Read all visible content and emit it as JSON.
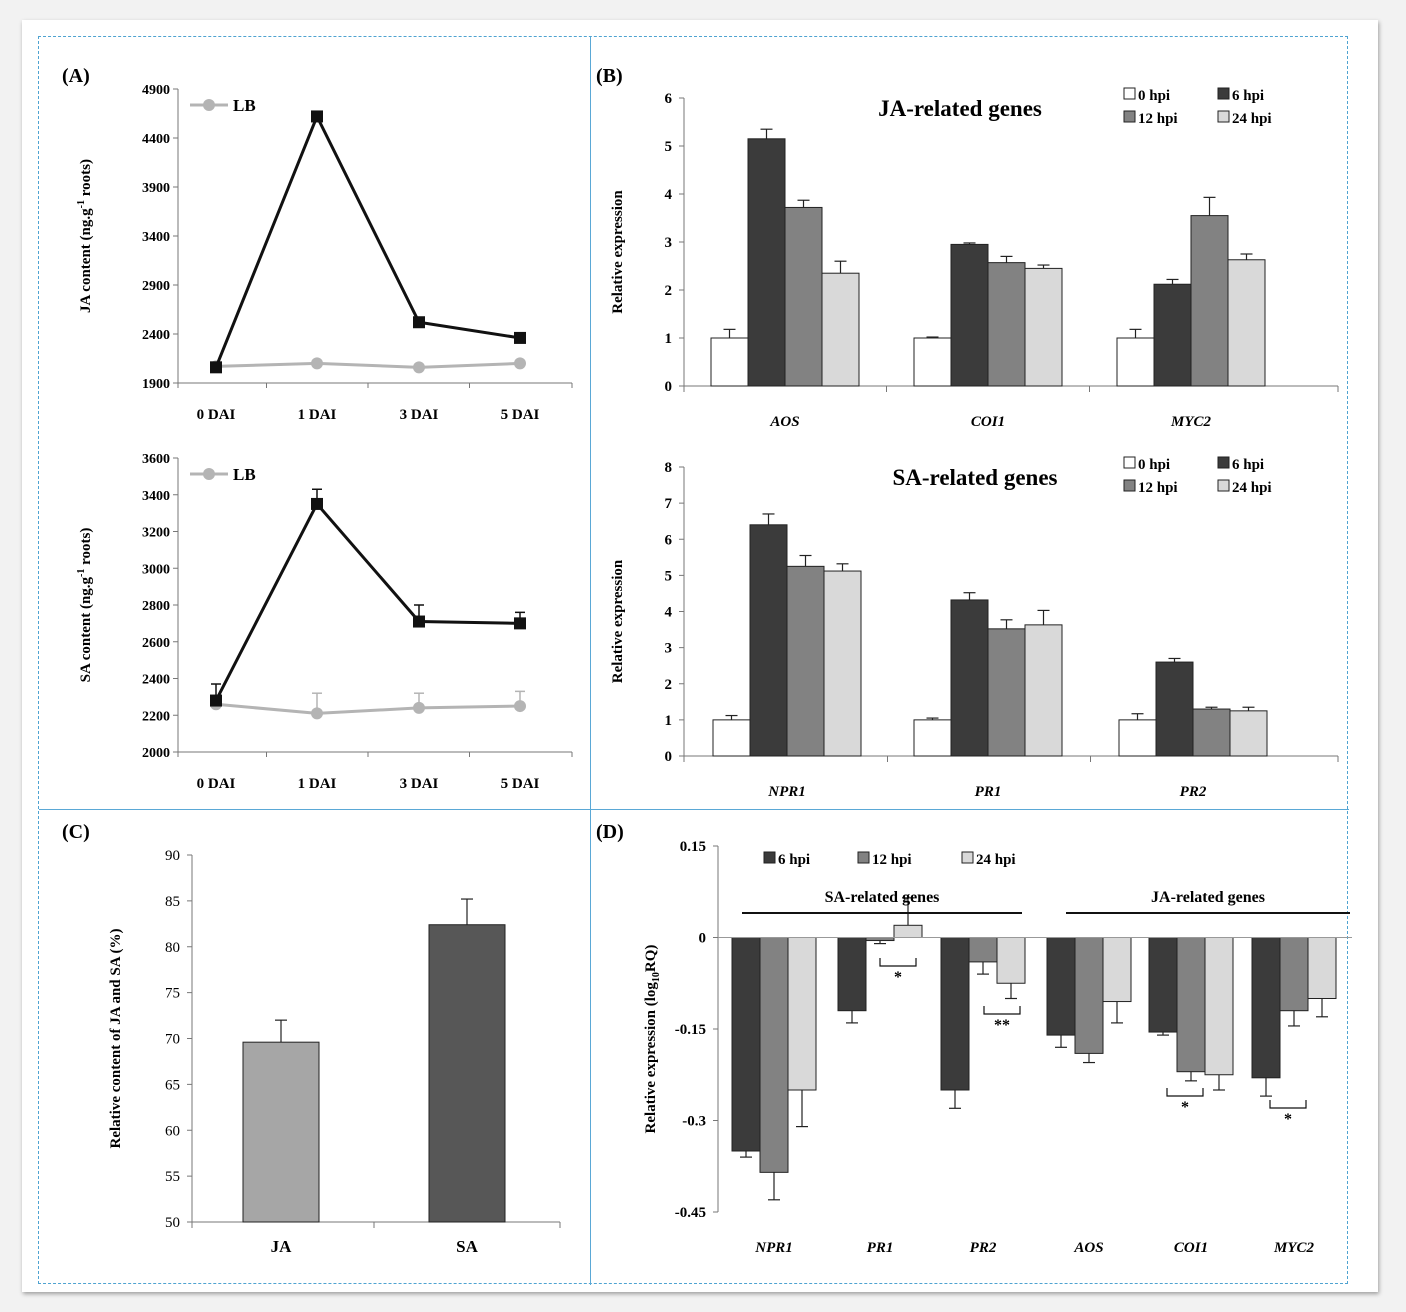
{
  "colors": {
    "dark": "#3b3b3b",
    "mid": "#828282",
    "light": "#d9d9d9",
    "white": "#ffffff",
    "lb_line": "#b4b4b4",
    "frame": "#4fa3d1"
  },
  "panels": {
    "A": {
      "label": "(A)"
    },
    "B": {
      "label": "(B)"
    },
    "C": {
      "label": "(C)"
    },
    "D": {
      "label": "(D)"
    }
  },
  "chart_data": [
    {
      "id": "A1",
      "type": "line",
      "categories": [
        "0 DAI",
        "1 DAI",
        "3 DAI",
        "5 DAI"
      ],
      "series": [
        {
          "name": "",
          "color": "#111111",
          "marker": "square",
          "values": [
            2060,
            4620,
            2520,
            2360
          ],
          "errors": [
            20,
            30,
            30,
            20
          ]
        },
        {
          "name": "LB",
          "color": "#b4b4b4",
          "marker": "circle",
          "values": [
            2070,
            2100,
            2060,
            2100
          ],
          "errors": [
            0,
            0,
            0,
            0
          ]
        }
      ],
      "ylabel_main": "JA content (ng.g",
      "ylabel_sup": "-1",
      "ylabel_tail": " roots)",
      "ylim": [
        1900,
        4900
      ],
      "yticks": [
        1900,
        2400,
        2900,
        3400,
        3900,
        4400,
        4900
      ],
      "legend": "top-left"
    },
    {
      "id": "A2",
      "type": "line",
      "categories": [
        "0 DAI",
        "1 DAI",
        "3 DAI",
        "5 DAI"
      ],
      "series": [
        {
          "name": "",
          "color": "#111111",
          "marker": "square",
          "values": [
            2280,
            3350,
            2710,
            2700
          ],
          "errors": [
            90,
            80,
            90,
            60
          ]
        },
        {
          "name": "LB",
          "color": "#b4b4b4",
          "marker": "circle",
          "values": [
            2260,
            2210,
            2240,
            2250
          ],
          "errors": [
            0,
            110,
            80,
            80
          ]
        }
      ],
      "ylabel_main": "SA content (ng.g",
      "ylabel_sup": "-1",
      "ylabel_tail": " roots)",
      "ylim": [
        2000,
        3600
      ],
      "yticks": [
        2000,
        2200,
        2400,
        2600,
        2800,
        3000,
        3200,
        3400,
        3600
      ],
      "legend": "top-left"
    },
    {
      "id": "B1",
      "type": "bar",
      "title": "JA-related genes",
      "categories": [
        "AOS",
        "COI1",
        "MYC2"
      ],
      "series": [
        {
          "name": "0 hpi",
          "color": "#ffffff",
          "values": [
            1.0,
            1.0,
            1.0
          ],
          "errors": [
            0.18,
            0.02,
            0.18
          ]
        },
        {
          "name": "6 hpi",
          "color": "#3b3b3b",
          "values": [
            5.15,
            2.95,
            2.12
          ],
          "errors": [
            0.2,
            0.03,
            0.1
          ]
        },
        {
          "name": "12 hpi",
          "color": "#828282",
          "values": [
            3.72,
            2.57,
            3.55
          ],
          "errors": [
            0.15,
            0.13,
            0.38
          ]
        },
        {
          "name": "24 hpi",
          "color": "#d9d9d9",
          "values": [
            2.35,
            2.45,
            2.63
          ],
          "errors": [
            0.25,
            0.07,
            0.12
          ]
        }
      ],
      "ylabel": "Relative expression",
      "ylim": [
        0,
        6
      ],
      "yticks": [
        0,
        1,
        2,
        3,
        4,
        5,
        6
      ],
      "legend": "top-right"
    },
    {
      "id": "B2",
      "type": "bar",
      "title": "SA-related genes",
      "categories": [
        "NPR1",
        "PR1",
        "PR2"
      ],
      "series": [
        {
          "name": "0 hpi",
          "color": "#ffffff",
          "values": [
            1.0,
            1.0,
            1.0
          ],
          "errors": [
            0.12,
            0.05,
            0.17
          ]
        },
        {
          "name": "6 hpi",
          "color": "#3b3b3b",
          "values": [
            6.4,
            4.32,
            2.6
          ],
          "errors": [
            0.3,
            0.2,
            0.1
          ]
        },
        {
          "name": "12 hpi",
          "color": "#828282",
          "values": [
            5.25,
            3.52,
            1.3
          ],
          "errors": [
            0.3,
            0.25,
            0.05
          ]
        },
        {
          "name": "24 hpi",
          "color": "#d9d9d9",
          "values": [
            5.12,
            3.63,
            1.25
          ],
          "errors": [
            0.2,
            0.4,
            0.1
          ]
        }
      ],
      "ylabel": "Relative expression",
      "ylim": [
        0,
        8
      ],
      "yticks": [
        0,
        1,
        2,
        3,
        4,
        5,
        6,
        7,
        8
      ],
      "legend": "top-right"
    },
    {
      "id": "C",
      "type": "bar",
      "categories": [
        "JA",
        "SA"
      ],
      "series": [
        {
          "name": "",
          "colors": [
            "#a6a6a6",
            "#575757"
          ],
          "values": [
            69.6,
            82.4
          ],
          "errors": [
            2.4,
            2.8
          ]
        }
      ],
      "ylabel": "Relative content of JA and SA (%)",
      "ylim": [
        50,
        90
      ],
      "yticks": [
        50,
        55,
        60,
        65,
        70,
        75,
        80,
        85,
        90
      ]
    },
    {
      "id": "D",
      "type": "bar",
      "categories": [
        "NPR1",
        "PR1",
        "PR2",
        "AOS",
        "COI1",
        "MYC2"
      ],
      "groups": [
        {
          "label": "SA-related genes",
          "categories": [
            "NPR1",
            "PR1",
            "PR2"
          ]
        },
        {
          "label": "JA-related genes",
          "categories": [
            "AOS",
            "COI1",
            "MYC2"
          ]
        }
      ],
      "series": [
        {
          "name": "6 hpi",
          "color": "#3b3b3b",
          "values": [
            -0.35,
            -0.12,
            -0.25,
            -0.16,
            -0.155,
            -0.23
          ],
          "errors": [
            0.01,
            0.02,
            0.03,
            0.02,
            0.005,
            0.03
          ]
        },
        {
          "name": "12 hpi",
          "color": "#828282",
          "values": [
            -0.385,
            -0.005,
            -0.04,
            -0.19,
            -0.22,
            -0.12
          ],
          "errors": [
            0.045,
            0.005,
            0.02,
            0.015,
            0.015,
            0.025
          ]
        },
        {
          "name": "24 hpi",
          "color": "#d9d9d9",
          "values": [
            -0.25,
            0.02,
            -0.075,
            -0.105,
            -0.225,
            -0.1
          ],
          "errors": [
            0.06,
            0.045,
            0.025,
            0.035,
            0.025,
            0.03
          ]
        }
      ],
      "significance": [
        {
          "category": "PR1",
          "label": "*"
        },
        {
          "category": "PR2",
          "label": "**"
        },
        {
          "category": "COI1",
          "label": "*"
        },
        {
          "category": "MYC2",
          "label": "*"
        }
      ],
      "ylabel_main": "Relative expression (log",
      "ylabel_sub": "10",
      "ylabel_tail": "RQ)",
      "ylim": [
        -0.45,
        0.15
      ],
      "yticks": [
        -0.45,
        -0.3,
        -0.15,
        0,
        0.15
      ],
      "ytick_labels": [
        "-0.45",
        "-0.3",
        "-0.15",
        "0",
        "0.15"
      ],
      "legend": "top-left"
    }
  ]
}
